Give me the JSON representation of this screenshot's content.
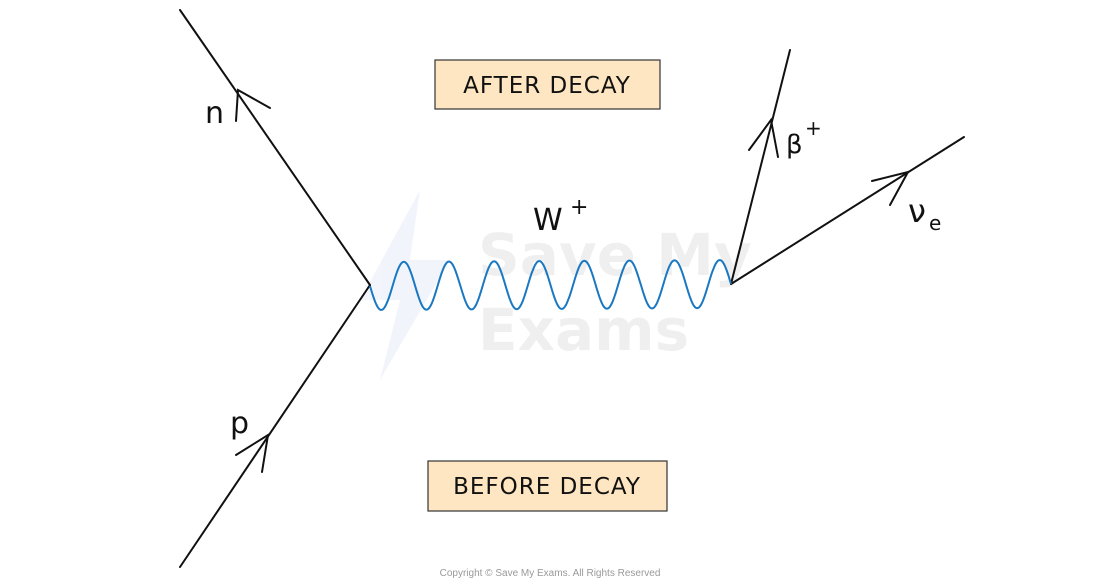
{
  "diagram": {
    "labels": {
      "after": "AFTER DECAY",
      "before": "BEFORE DECAY",
      "neutron": "n",
      "proton": "p",
      "boson": "W",
      "boson_charge": "+",
      "positron": "β",
      "positron_charge": "+",
      "neutrino": "ν",
      "neutrino_sub": "e"
    },
    "colors": {
      "line": "#111111",
      "boson": "#1a78c2",
      "box_fill": "#fde6c1",
      "box_border": "#333333"
    }
  },
  "watermark": "Save My Exams",
  "footer": {
    "copyright": "Copyright © Save My Exams. All Rights Reserved"
  }
}
